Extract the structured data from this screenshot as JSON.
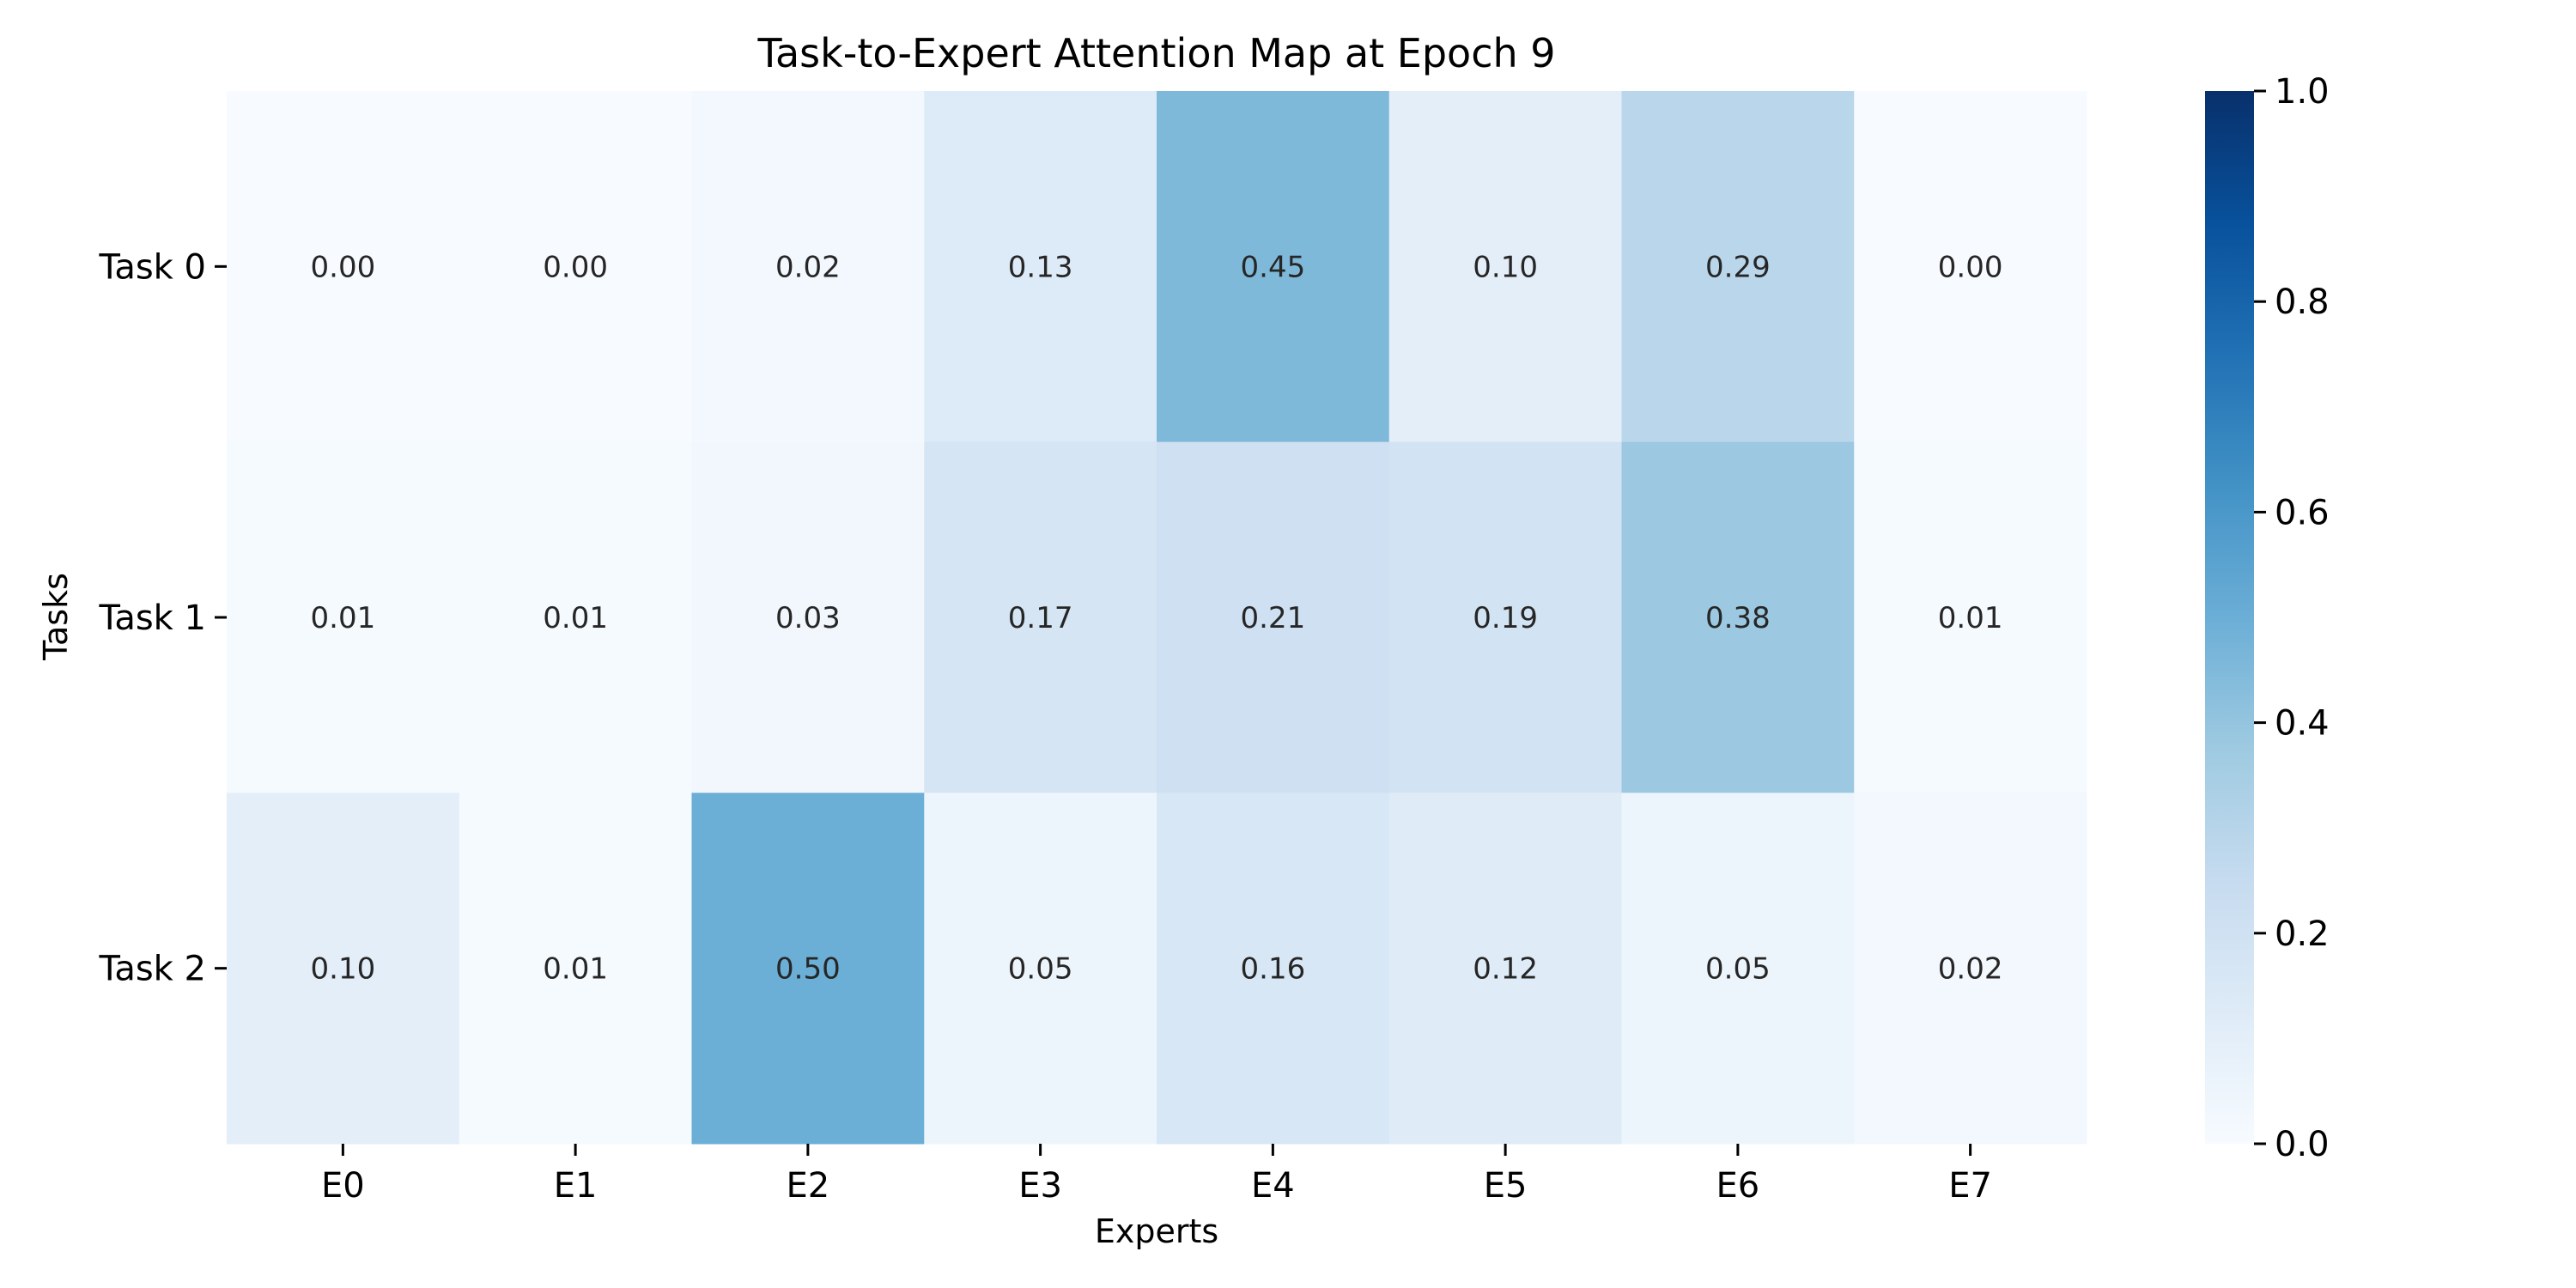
{
  "chart_data": {
    "type": "heatmap",
    "title": "Task-to-Expert Attention Map at Epoch 9",
    "xlabel": "Experts",
    "ylabel": "Tasks",
    "x_categories": [
      "E0",
      "E1",
      "E2",
      "E3",
      "E4",
      "E5",
      "E6",
      "E7"
    ],
    "y_categories": [
      "Task 0",
      "Task 1",
      "Task 2"
    ],
    "values": [
      [
        0.0,
        0.0,
        0.02,
        0.13,
        0.45,
        0.1,
        0.29,
        0.0
      ],
      [
        0.01,
        0.01,
        0.03,
        0.17,
        0.21,
        0.19,
        0.38,
        0.01
      ],
      [
        0.1,
        0.01,
        0.5,
        0.05,
        0.16,
        0.12,
        0.05,
        0.02
      ]
    ],
    "value_labels": [
      [
        "0.00",
        "0.00",
        "0.02",
        "0.13",
        "0.45",
        "0.10",
        "0.29",
        "0.00"
      ],
      [
        "0.01",
        "0.01",
        "0.03",
        "0.17",
        "0.21",
        "0.19",
        "0.38",
        "0.01"
      ],
      [
        "0.10",
        "0.01",
        "0.50",
        "0.05",
        "0.16",
        "0.12",
        "0.05",
        "0.02"
      ]
    ],
    "colormap": "Blues",
    "colormap_low": "#f7fbff",
    "colormap_high": "#08306b",
    "vmin": 0.0,
    "vmax": 1.0,
    "colorbar": {
      "placement": "right",
      "ticks": [
        0.0,
        0.2,
        0.4,
        0.6,
        0.8,
        1.0
      ],
      "tick_labels": [
        "0.0",
        "0.2",
        "0.4",
        "0.6",
        "0.8",
        "1.0"
      ]
    }
  }
}
